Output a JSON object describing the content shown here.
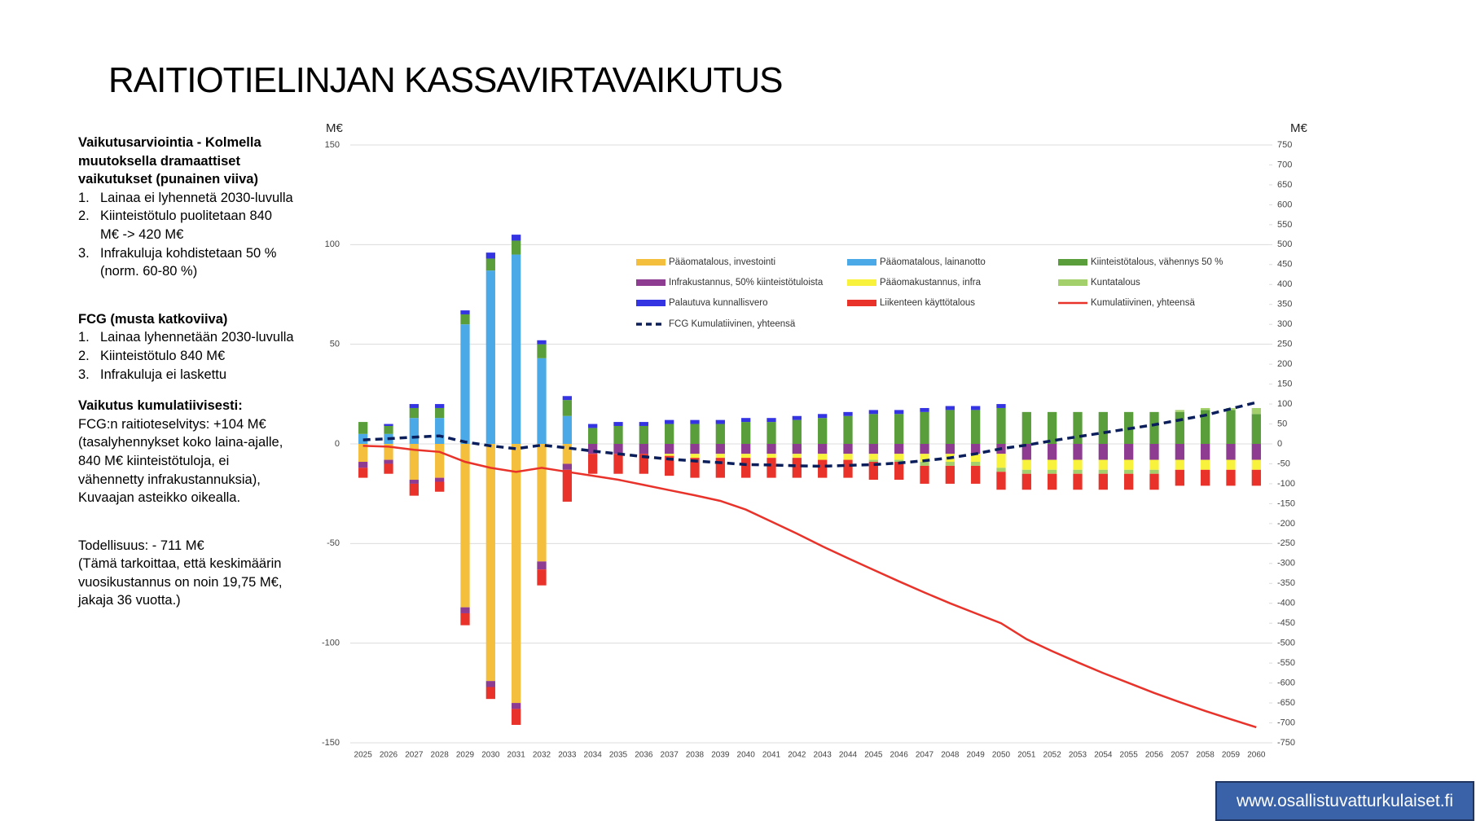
{
  "header": {
    "title": "RAITIOTIELINJAN KASSAVIRTAVAIKUTUS"
  },
  "sidebar": [
    {
      "bold": true,
      "lines": [
        "Vaikutusarviointia -  Kolmella",
        "muutoksella dramaattiset",
        "vaikutukset (punainen viiva)"
      ]
    },
    {
      "items": [
        {
          "num": "1.",
          "lines": [
            "Lainaa ei lyhennetä 2030-luvulla"
          ]
        },
        {
          "num": "2.",
          "lines": [
            "Kiinteistötulo puolitetaan 840",
            "M€ -> 420 M€"
          ]
        },
        {
          "num": "3.",
          "lines": [
            "Infrakuluja kohdistetaan 50 %",
            "(norm. 60-80 %)"
          ]
        }
      ]
    },
    {
      "bold": true,
      "lines": [
        "FCG (musta katkoviiva)"
      ]
    },
    {
      "items": [
        {
          "num": "1.",
          "lines": [
            "Lainaa lyhennetään 2030-luvulla"
          ]
        },
        {
          "num": "2.",
          "lines": [
            "Kiinteistötulo 840 M€"
          ]
        },
        {
          "num": "3.",
          "lines": [
            "Infrakuluja ei laskettu"
          ]
        }
      ]
    },
    {
      "bold": true,
      "lines": [
        "Vaikutus kumulatiivisesti:"
      ]
    },
    {
      "bold": false,
      "lines": [
        "FCG:n raitioteselvitys: +104 M€",
        "(tasalyhennykset koko laina-ajalle,",
        "840 M€ kiinteistötuloja, ei",
        "vähennetty infrakustannuksia),",
        "Kuvaajan asteikko oikealla."
      ]
    },
    {
      "bold": false,
      "lines": [
        "Todellisuus: - 711 M€",
        "(Tämä tarkoittaa, että keskimäärin",
        "vuosikustannus on noin 19,75 M€,",
        "jakaja 36 vuotta.)"
      ]
    }
  ],
  "footer": {
    "url": "www.osallistuvatturkulaiset.fi"
  },
  "chart_data": {
    "type": "bar",
    "stacked": true,
    "y_unit": "M€",
    "y2_unit": "M€",
    "categories": [
      "2025",
      "2026",
      "2027",
      "2028",
      "2029",
      "2030",
      "2031",
      "2032",
      "2033",
      "2034",
      "2035",
      "2036",
      "2037",
      "2038",
      "2039",
      "2040",
      "2041",
      "2042",
      "2043",
      "2044",
      "2045",
      "2046",
      "2047",
      "2048",
      "2049",
      "2050",
      "2051",
      "2052",
      "2053",
      "2054",
      "2055",
      "2056",
      "2057",
      "2058",
      "2059",
      "2060"
    ],
    "ylim": [
      -150,
      150
    ],
    "yticks": [
      -150,
      -100,
      -50,
      0,
      50,
      100,
      150
    ],
    "y2lim": [
      -750,
      750
    ],
    "y2ticks": [
      -750,
      -700,
      -650,
      -600,
      -550,
      -500,
      -450,
      -400,
      -350,
      -300,
      -250,
      -200,
      -150,
      -100,
      -50,
      0,
      50,
      100,
      150,
      200,
      250,
      300,
      350,
      400,
      450,
      500,
      550,
      600,
      650,
      700,
      750
    ],
    "grid": true,
    "series": [
      {
        "name": "Pääomatalous, investointi",
        "color": "#f5bf3e",
        "values": [
          -9,
          -8,
          -18,
          -17,
          -82,
          -119,
          -130,
          -59,
          -10,
          0,
          0,
          0,
          0,
          0,
          0,
          0,
          0,
          0,
          0,
          0,
          0,
          0,
          0,
          0,
          0,
          0,
          0,
          0,
          0,
          0,
          0,
          0,
          0,
          0,
          0,
          0
        ]
      },
      {
        "name": "Pääomatalous, lainanotto",
        "color": "#4ca9e8",
        "values": [
          5,
          5,
          13,
          13,
          60,
          87,
          95,
          43,
          14,
          0,
          0,
          0,
          0,
          0,
          0,
          0,
          0,
          0,
          0,
          0,
          0,
          0,
          0,
          0,
          0,
          0,
          0,
          0,
          0,
          0,
          0,
          0,
          0,
          0,
          0,
          0
        ]
      },
      {
        "name": "Kiinteistötalous, vähennys 50 %",
        "color": "#5a9e3c",
        "values": [
          6,
          4,
          5,
          5,
          5,
          6,
          7,
          7,
          8,
          8,
          9,
          9,
          10,
          10,
          10,
          11,
          11,
          12,
          13,
          14,
          15,
          15,
          16,
          17,
          17,
          18,
          16,
          16,
          16,
          16,
          16,
          16,
          16,
          17,
          17,
          15
        ]
      },
      {
        "name": "Infrakustannus, 50% kiinteistötuloista",
        "color": "#8e3b92",
        "values": [
          -3,
          -2,
          -2,
          -2,
          -3,
          -3,
          -3,
          -4,
          -3,
          -5,
          -5,
          -5,
          -5,
          -5,
          -5,
          -5,
          -5,
          -5,
          -5,
          -5,
          -5,
          -5,
          -5,
          -5,
          -5,
          -5,
          -8,
          -8,
          -8,
          -8,
          -8,
          -8,
          -8,
          -8,
          -8,
          -8
        ]
      },
      {
        "name": "Pääomakustannus, infra",
        "color": "#f8f23c",
        "values": [
          0,
          0,
          0,
          0,
          0,
          0,
          0,
          0,
          0,
          0,
          0,
          0,
          -1,
          -2,
          -2,
          -2,
          -2,
          -2,
          -3,
          -3,
          -3,
          -3,
          -4,
          -4,
          -4,
          -7,
          -5,
          -5,
          -5,
          -5,
          -5,
          -5,
          -5,
          -5,
          -5,
          -5
        ]
      },
      {
        "name": "Kuntatalous",
        "color": "#a4d06c",
        "values": [
          0,
          0,
          0,
          0,
          0,
          0,
          0,
          0,
          0,
          0,
          0,
          0,
          0,
          0,
          0,
          0,
          0,
          0,
          0,
          0,
          -1,
          -1,
          -2,
          -2,
          -2,
          -2,
          -2,
          -2,
          -2,
          -2,
          -2,
          -2,
          1,
          1,
          1,
          3
        ]
      },
      {
        "name": "Palautuva kunnallisvero",
        "color": "#3434e2",
        "values": [
          0,
          1,
          2,
          2,
          2,
          3,
          3,
          2,
          2,
          2,
          2,
          2,
          2,
          2,
          2,
          2,
          2,
          2,
          2,
          2,
          2,
          2,
          2,
          2,
          2,
          2,
          0,
          0,
          0,
          0,
          0,
          0,
          0,
          0,
          0,
          0
        ]
      },
      {
        "name": "Liikenteen käyttötalous",
        "color": "#e8322a",
        "values": [
          -5,
          -5,
          -6,
          -5,
          -6,
          -6,
          -8,
          -8,
          -16,
          -10,
          -10,
          -10,
          -10,
          -10,
          -10,
          -10,
          -10,
          -10,
          -9,
          -9,
          -9,
          -9,
          -9,
          -9,
          -9,
          -9,
          -8,
          -8,
          -8,
          -8,
          -8,
          -8,
          -8,
          -8,
          -8,
          -8
        ]
      },
      {
        "name": "Kumulatiivinen, yhteensä",
        "color": "#e8322a",
        "axis": "y2",
        "values": [
          -5,
          -7,
          -15,
          -20,
          -45,
          -60,
          -70,
          -60,
          -70,
          -80,
          -90,
          -103,
          -116,
          -129,
          -143,
          -165,
          -195,
          -225,
          -257,
          -287,
          -316,
          -345,
          -373,
          -400,
          -425,
          -450,
          -490,
          -520,
          -548,
          -575,
          -600,
          -625,
          -648,
          -670,
          -691,
          -711
        ]
      },
      {
        "name": "FCG Kumulatiivinen, yhteensä",
        "color": "#0b1e5c",
        "axis": "y2",
        "dash": true,
        "values": [
          10,
          13,
          17,
          20,
          5,
          -5,
          -12,
          -3,
          -10,
          -18,
          -25,
          -32,
          -38,
          -43,
          -47,
          -52,
          -53,
          -55,
          -56,
          -54,
          -52,
          -48,
          -42,
          -35,
          -25,
          -12,
          -3,
          8,
          18,
          28,
          38,
          48,
          60,
          72,
          88,
          104
        ]
      }
    ]
  }
}
